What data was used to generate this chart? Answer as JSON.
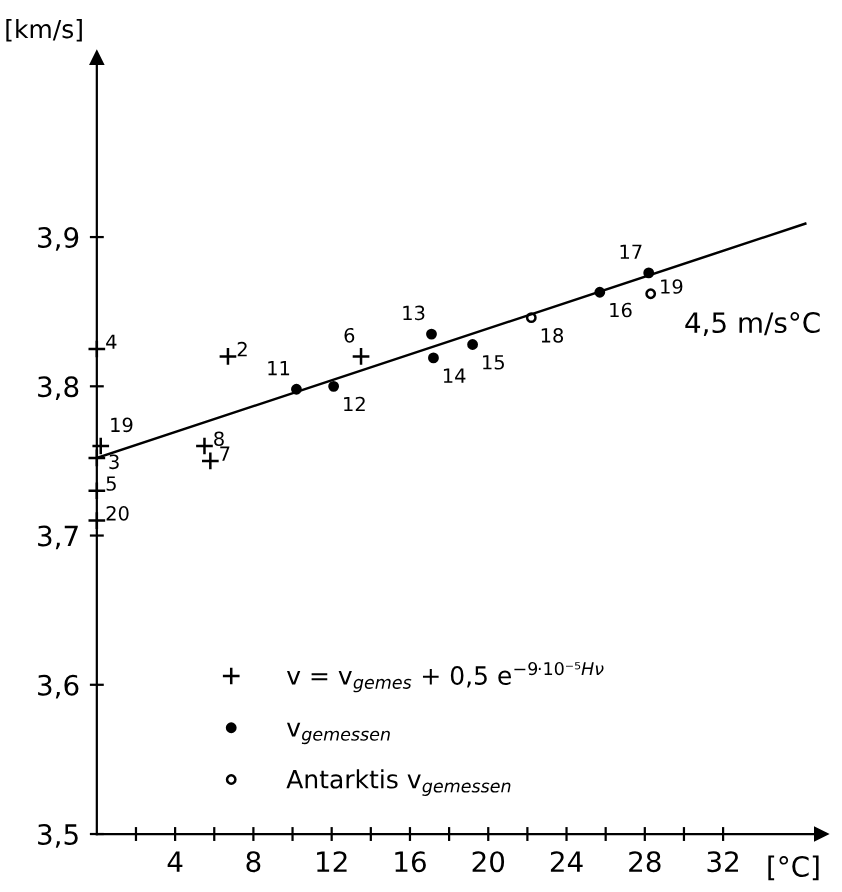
{
  "chart_data": {
    "type": "scatter",
    "ylabel": "[km/s]",
    "xlabel": "[°C]",
    "xlim": [
      0,
      37
    ],
    "ylim": [
      3.5,
      4.02
    ],
    "xticks": [
      {
        "value": 2,
        "label": null
      },
      4,
      {
        "value": 6,
        "label": null
      },
      8,
      {
        "value": 10,
        "label": null
      },
      12,
      {
        "value": 14,
        "label": null
      },
      16,
      {
        "value": 18,
        "label": null
      },
      20,
      {
        "value": 22,
        "label": null
      },
      24,
      {
        "value": 26,
        "label": null
      },
      28,
      {
        "value": 30,
        "label": null
      },
      32
    ],
    "yticks": [
      {
        "value": 3.5,
        "label": "3,5"
      },
      {
        "value": 3.6,
        "label": "3,6"
      },
      {
        "value": 3.7,
        "label": "3,7"
      },
      {
        "value": 3.8,
        "label": "3,8"
      },
      {
        "value": 3.9,
        "label": "3,9"
      }
    ],
    "grid": false,
    "legend": "bottom left",
    "series": [
      {
        "name": "v = v$_{gemes}$ + 0,5 e$^{−9·10⁻⁵Hν}$",
        "marker": "cross",
        "color": "#000000",
        "x": [
          0,
          6.7,
          13.5,
          0.2,
          0,
          0,
          0,
          5.5,
          5.8
        ],
        "values": [
          3.825,
          3.82,
          3.82,
          3.76,
          3.752,
          3.73,
          3.71,
          3.76,
          3.75
        ]
      },
      {
        "name": "v$_{gemessen}$",
        "marker": "circle",
        "color": "#000000",
        "x": [
          10.2,
          12.1,
          17.1,
          17.2,
          19.2,
          25.7,
          28.2
        ],
        "values": [
          3.798,
          3.8,
          3.835,
          3.819,
          3.828,
          3.863,
          3.876
        ]
      },
      {
        "name": "Antarktis v$_{gemessen}$",
        "marker": "open circle",
        "color": "#000000",
        "x": [
          22.2,
          28.3
        ],
        "values": [
          3.846,
          3.862
        ]
      },
      {
        "type": "line",
        "color": "#000000",
        "x": [
          0,
          36.2
        ],
        "values": [
          3.752,
          3.909
        ]
      }
    ],
    "annotations": [
      {
        "text": "4",
        "x": 0,
        "y": 3.825
      },
      {
        "text": "2",
        "x": 6.7,
        "y": 3.82
      },
      {
        "text": "6",
        "x": 13.5,
        "y": 3.82
      },
      {
        "text": "19",
        "x": 0.2,
        "y": 3.76
      },
      {
        "text": "3",
        "x": 0,
        "y": 3.752
      },
      {
        "text": "5",
        "x": 0,
        "y": 3.73
      },
      {
        "text": "20",
        "x": 0,
        "y": 3.71
      },
      {
        "text": "8",
        "x": 5.5,
        "y": 3.76
      },
      {
        "text": "7",
        "x": 5.8,
        "y": 3.75
      },
      {
        "text": "11",
        "x": 10.2,
        "y": 3.798
      },
      {
        "text": "12",
        "x": 12.1,
        "y": 3.8
      },
      {
        "text": "13",
        "x": 17.1,
        "y": 3.835
      },
      {
        "text": "14",
        "x": 17.2,
        "y": 3.819
      },
      {
        "text": "15",
        "x": 19.2,
        "y": 3.828
      },
      {
        "text": "16",
        "x": 25.7,
        "y": 3.863
      },
      {
        "text": "17",
        "x": 28.2,
        "y": 3.876
      },
      {
        "text": "18",
        "x": 22.2,
        "y": 3.846
      },
      {
        "text": "19",
        "x": 28.3,
        "y": 3.862
      },
      {
        "text": "4,5 m/s°C",
        "x": 30,
        "y": 3.882
      }
    ]
  }
}
